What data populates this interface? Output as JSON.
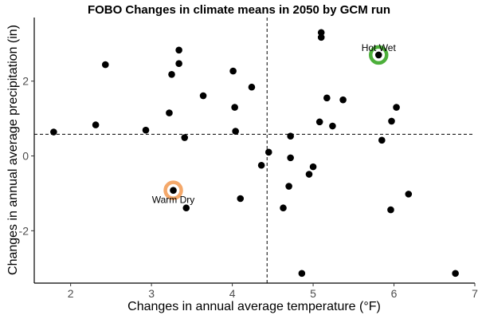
{
  "chart_data": {
    "type": "scatter",
    "title": "FOBO Changes in climate means in 2050 by GCM run",
    "xlabel": "Changes in annual average temperature (°F)",
    "ylabel": "Changes in annual average precipitation (in)",
    "xlim": [
      1.55,
      7.0
    ],
    "ylim": [
      -3.4,
      3.7
    ],
    "xticks": [
      2,
      3,
      4,
      5,
      6,
      7
    ],
    "yticks": [
      -2,
      0,
      2
    ],
    "grid": false,
    "point_color": "#000000",
    "reference_lines": {
      "x": 4.43,
      "y": 0.58
    },
    "points": [
      {
        "x": 1.79,
        "y": 0.64
      },
      {
        "x": 2.31,
        "y": 0.83
      },
      {
        "x": 2.43,
        "y": 2.44
      },
      {
        "x": 2.93,
        "y": 0.69
      },
      {
        "x": 3.22,
        "y": 1.15
      },
      {
        "x": 3.25,
        "y": 2.18
      },
      {
        "x": 3.27,
        "y": -0.92
      },
      {
        "x": 3.34,
        "y": 2.83
      },
      {
        "x": 3.34,
        "y": 2.47
      },
      {
        "x": 3.41,
        "y": 0.49
      },
      {
        "x": 3.43,
        "y": -1.39
      },
      {
        "x": 3.64,
        "y": 1.61
      },
      {
        "x": 4.01,
        "y": 2.27
      },
      {
        "x": 4.03,
        "y": 1.3
      },
      {
        "x": 4.04,
        "y": 0.66
      },
      {
        "x": 4.1,
        "y": -1.14
      },
      {
        "x": 4.24,
        "y": 1.84
      },
      {
        "x": 4.36,
        "y": -0.25
      },
      {
        "x": 4.45,
        "y": 0.1
      },
      {
        "x": 4.63,
        "y": -1.39
      },
      {
        "x": 4.7,
        "y": -0.81
      },
      {
        "x": 4.72,
        "y": 0.53
      },
      {
        "x": 4.72,
        "y": -0.05
      },
      {
        "x": 4.86,
        "y": -3.14
      },
      {
        "x": 4.95,
        "y": -0.49
      },
      {
        "x": 5.0,
        "y": -0.29
      },
      {
        "x": 5.08,
        "y": 0.91
      },
      {
        "x": 5.1,
        "y": 3.3
      },
      {
        "x": 5.1,
        "y": 3.17
      },
      {
        "x": 5.17,
        "y": 1.55
      },
      {
        "x": 5.24,
        "y": 0.8
      },
      {
        "x": 5.37,
        "y": 1.5
      },
      {
        "x": 5.81,
        "y": 2.7
      },
      {
        "x": 5.85,
        "y": 0.42
      },
      {
        "x": 5.96,
        "y": -1.44
      },
      {
        "x": 5.97,
        "y": 0.93
      },
      {
        "x": 6.03,
        "y": 1.3
      },
      {
        "x": 6.18,
        "y": -1.02
      },
      {
        "x": 6.76,
        "y": -3.14
      }
    ],
    "highlights": [
      {
        "label": "Hot Wet",
        "x": 5.81,
        "y": 2.7,
        "color": "#4caf3a",
        "label_position": "above"
      },
      {
        "label": "Warm Dry",
        "x": 3.27,
        "y": -0.92,
        "color": "#f4a86a",
        "label_position": "below"
      }
    ]
  }
}
